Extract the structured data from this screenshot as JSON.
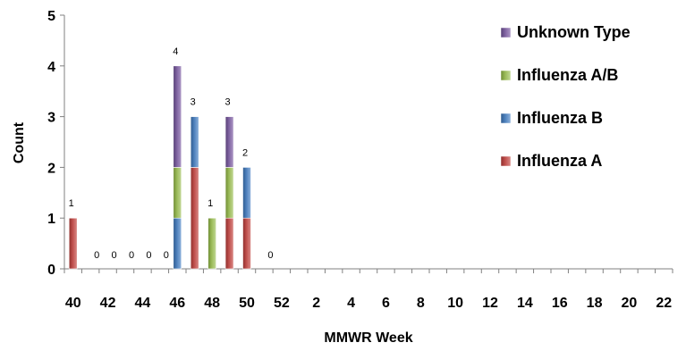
{
  "chart_data": {
    "type": "bar",
    "stacked": true,
    "title": "",
    "xlabel": "MMWR Week",
    "ylabel": "Count",
    "ylim": [
      0,
      5
    ],
    "yticks": [
      0,
      1,
      2,
      3,
      4,
      5
    ],
    "grid": false,
    "legend_position": "right",
    "categories": [
      "40",
      "41",
      "42",
      "43",
      "44",
      "45",
      "46",
      "47",
      "48",
      "49",
      "50",
      "51",
      "52",
      "1",
      "2",
      "3",
      "4",
      "5",
      "6",
      "7",
      "8",
      "9",
      "10",
      "11",
      "12",
      "13",
      "14",
      "15",
      "16",
      "17",
      "18",
      "19",
      "20",
      "21",
      "22"
    ],
    "x_tick_labels": [
      "40",
      "42",
      "44",
      "46",
      "48",
      "50",
      "52",
      "2",
      "4",
      "6",
      "8",
      "10",
      "12",
      "14",
      "16",
      "18",
      "20",
      "22"
    ],
    "series": [
      {
        "name": "Influenza A",
        "color": "#c0504d",
        "values": [
          1,
          0,
          0,
          0,
          0,
          0,
          0,
          2,
          0,
          1,
          1,
          0,
          0,
          0,
          0,
          0,
          0,
          0,
          0,
          0,
          0,
          0,
          0,
          0,
          0,
          0,
          0,
          0,
          0,
          0,
          0,
          0,
          0,
          0,
          0
        ]
      },
      {
        "name": "Influenza B",
        "color": "#4f81bd",
        "values": [
          0,
          0,
          0,
          0,
          0,
          0,
          1,
          1,
          0,
          0,
          1,
          0,
          0,
          0,
          0,
          0,
          0,
          0,
          0,
          0,
          0,
          0,
          0,
          0,
          0,
          0,
          0,
          0,
          0,
          0,
          0,
          0,
          0,
          0,
          0
        ]
      },
      {
        "name": "Influenza A/B",
        "color": "#9bbb59",
        "values": [
          0,
          0,
          0,
          0,
          0,
          0,
          1,
          0,
          1,
          1,
          0,
          0,
          0,
          0,
          0,
          0,
          0,
          0,
          0,
          0,
          0,
          0,
          0,
          0,
          0,
          0,
          0,
          0,
          0,
          0,
          0,
          0,
          0,
          0,
          0
        ]
      },
      {
        "name": "Unknown Type",
        "color": "#8064a2",
        "values": [
          0,
          0,
          0,
          0,
          0,
          0,
          2,
          0,
          0,
          1,
          0,
          0,
          0,
          0,
          0,
          0,
          0,
          0,
          0,
          0,
          0,
          0,
          0,
          0,
          0,
          0,
          0,
          0,
          0,
          0,
          0,
          0,
          0,
          0,
          0
        ]
      }
    ],
    "total_labels": [
      "1",
      "0",
      "0",
      "0",
      "0",
      "0",
      "4",
      "3",
      "1",
      "3",
      "2",
      "0",
      "",
      "",
      "",
      "",
      "",
      "",
      "",
      "",
      "",
      "",
      "",
      "",
      "",
      "",
      "",
      "",
      "",
      "",
      "",
      "",
      "",
      "",
      ""
    ]
  }
}
